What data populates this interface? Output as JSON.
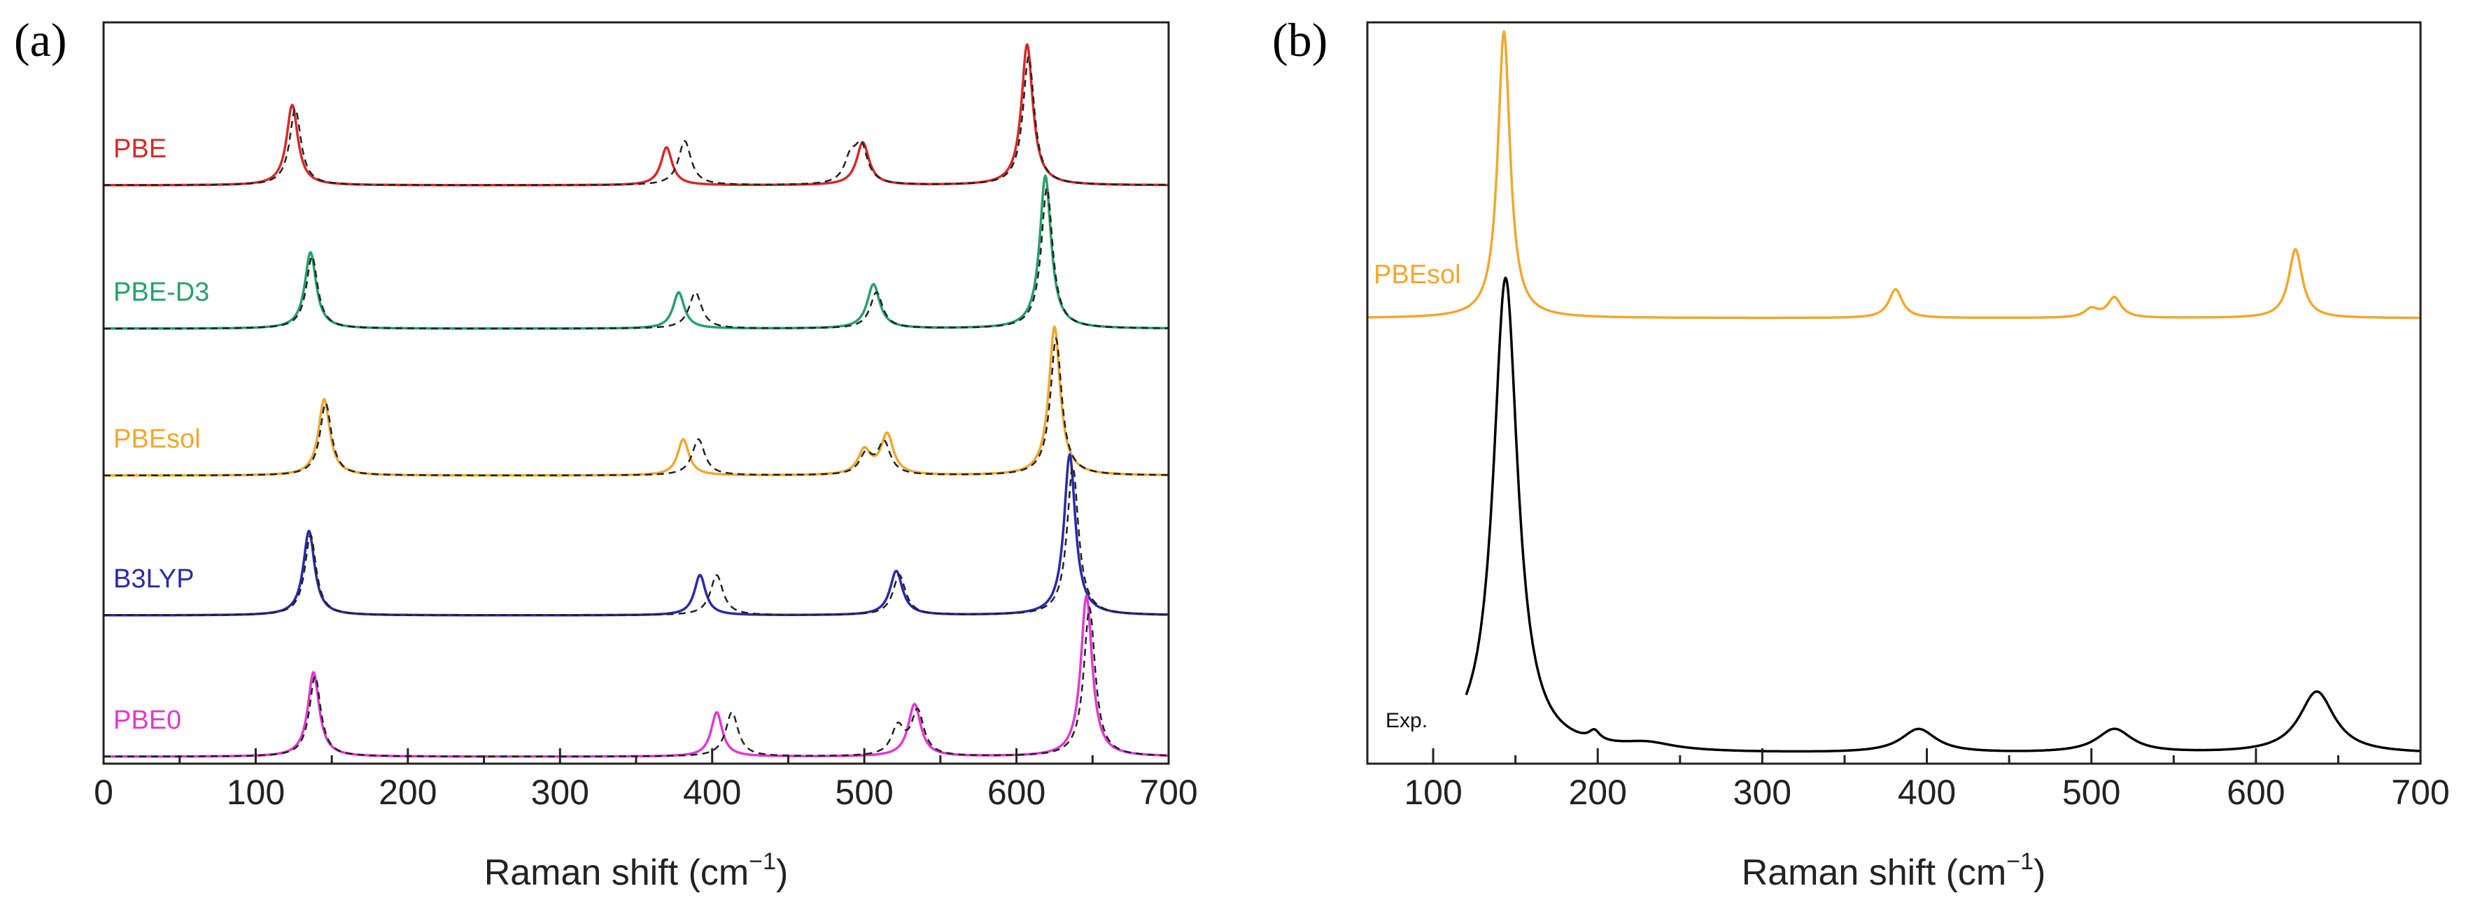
{
  "chart_data": [
    {
      "id": "a",
      "panel_label": "(a)",
      "type": "line",
      "title": "",
      "xlabel_main": "Raman shift (cm",
      "xlabel_sup": "−1",
      "xlabel_close": ")",
      "ylabel": "",
      "xlim": [
        0,
        700
      ],
      "xticks": [
        0,
        100,
        200,
        300,
        400,
        500,
        600,
        700
      ],
      "xtick_labels": [
        "0",
        "100",
        "200",
        "300",
        "400",
        "500",
        "600",
        "700"
      ],
      "grid": false,
      "reference_style": "black dashed",
      "series": [
        {
          "name": "PBE",
          "color": "#d42a2a",
          "baseline_rank": 4,
          "peaks": [
            [
              124,
              1.0,
              4.5
            ],
            [
              370,
              0.47,
              4.5
            ],
            [
              499,
              0.53,
              5
            ],
            [
              607,
              1.75,
              4.5
            ]
          ],
          "reference_peaks": [
            [
              126,
              0.95,
              4.5
            ],
            [
              382,
              0.55,
              5
            ],
            [
              491,
              0.3,
              5
            ],
            [
              498,
              0.45,
              5
            ],
            [
              608,
              1.6,
              4.5
            ]
          ]
        },
        {
          "name": "PBE-D3",
          "color": "#27a06a",
          "baseline_rank": 3,
          "peaks": [
            [
              136,
              0.95,
              4.5
            ],
            [
              378,
              0.45,
              4.5
            ],
            [
              506,
              0.55,
              5
            ],
            [
              619,
              1.9,
              4.5
            ]
          ],
          "reference_peaks": [
            [
              137,
              0.9,
              4.5
            ],
            [
              389,
              0.45,
              5
            ],
            [
              508,
              0.45,
              5
            ],
            [
              620,
              1.75,
              4.5
            ]
          ]
        },
        {
          "name": "PBEsol",
          "color": "#f0a830",
          "baseline_rank": 2,
          "peaks": [
            [
              145,
              0.95,
              4.5
            ],
            [
              381,
              0.45,
              4.5
            ],
            [
              500,
              0.3,
              5
            ],
            [
              515,
              0.5,
              5
            ],
            [
              625,
              1.85,
              4.5
            ]
          ],
          "reference_peaks": [
            [
              146,
              0.9,
              4.5
            ],
            [
              391,
              0.45,
              5
            ],
            [
              501,
              0.25,
              5
            ],
            [
              513,
              0.4,
              5
            ],
            [
              626,
              1.7,
              4.5
            ]
          ]
        },
        {
          "name": "B3LYP",
          "color": "#2a2aaa",
          "baseline_rank": 1,
          "peaks": [
            [
              135,
              1.05,
              4.5
            ],
            [
              392,
              0.5,
              4.5
            ],
            [
              521,
              0.55,
              5
            ],
            [
              635,
              2.0,
              4.5
            ]
          ],
          "reference_peaks": [
            [
              136,
              1.0,
              4.5
            ],
            [
              403,
              0.5,
              5
            ],
            [
              523,
              0.5,
              5
            ],
            [
              637,
              1.85,
              4.5
            ]
          ]
        },
        {
          "name": "PBE0",
          "color": "#e03ad0",
          "baseline_rank": 0,
          "peaks": [
            [
              138,
              1.05,
              4.5
            ],
            [
              403,
              0.55,
              4.5
            ],
            [
              533,
              0.65,
              5
            ],
            [
              646,
              2.0,
              4.5
            ]
          ],
          "reference_peaks": [
            [
              139,
              1.0,
              4.5
            ],
            [
              413,
              0.55,
              5
            ],
            [
              522,
              0.35,
              5
            ],
            [
              535,
              0.55,
              5
            ],
            [
              648,
              1.85,
              4.5
            ]
          ]
        }
      ]
    },
    {
      "id": "b",
      "panel_label": "(b)",
      "type": "line",
      "title": "",
      "xlabel_main": "Raman shift (cm",
      "xlabel_sup": "−1",
      "xlabel_close": ")",
      "ylabel": "",
      "xlim": [
        60,
        700
      ],
      "xticks": [
        100,
        200,
        300,
        400,
        500,
        600,
        700
      ],
      "xtick_labels": [
        "100",
        "200",
        "300",
        "400",
        "500",
        "600",
        "700"
      ],
      "grid": false,
      "series": [
        {
          "name": "PBEsol",
          "color": "#f0a830",
          "baseline_rank": 1,
          "x_start": 60,
          "peaks": [
            [
              143,
              1.0,
              4.5
            ],
            [
              381,
              0.1,
              5
            ],
            [
              500,
              0.03,
              5
            ],
            [
              514,
              0.07,
              5
            ],
            [
              624,
              0.24,
              5
            ]
          ]
        },
        {
          "name": "Exp.",
          "color": "#000000",
          "baseline_rank": 0,
          "x_start": 120,
          "peaks": [
            [
              144,
              1.0,
              9
            ],
            [
              198,
              0.02,
              4
            ],
            [
              230,
              0.015,
              20
            ],
            [
              395,
              0.05,
              13
            ],
            [
              514,
              0.05,
              13
            ],
            [
              637,
              0.13,
              13
            ]
          ]
        }
      ]
    }
  ]
}
